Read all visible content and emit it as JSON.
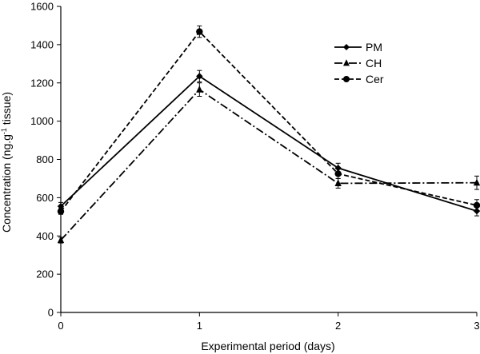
{
  "chart_data": {
    "type": "line",
    "xlabel": "Experimental period (days)",
    "ylabel": {
      "main": "Concentration (ng.g",
      "superscript": "-1",
      "suffix": " tissue)"
    },
    "x": [
      0,
      1,
      2,
      3
    ],
    "x_ticks": [
      "0",
      "1",
      "2",
      "3"
    ],
    "ylim": [
      0,
      1600
    ],
    "y_ticks": [
      "0",
      "200",
      "400",
      "600",
      "800",
      "1000",
      "1200",
      "1400",
      "1600"
    ],
    "grid": false,
    "legend_position": "top-right",
    "series": [
      {
        "name": "PM",
        "marker": "diamond",
        "line_style": "solid",
        "values": [
          555,
          1235,
          755,
          530
        ],
        "errors": [
          20,
          30,
          25,
          25
        ]
      },
      {
        "name": "CH",
        "marker": "triangle",
        "line_style": "dash-dot",
        "values": [
          378,
          1165,
          675,
          678
        ],
        "errors": [
          15,
          35,
          25,
          35
        ]
      },
      {
        "name": "Cer",
        "marker": "circle",
        "line_style": "dashed",
        "values": [
          528,
          1468,
          725,
          560
        ],
        "errors": [
          15,
          30,
          25,
          30
        ]
      }
    ]
  }
}
